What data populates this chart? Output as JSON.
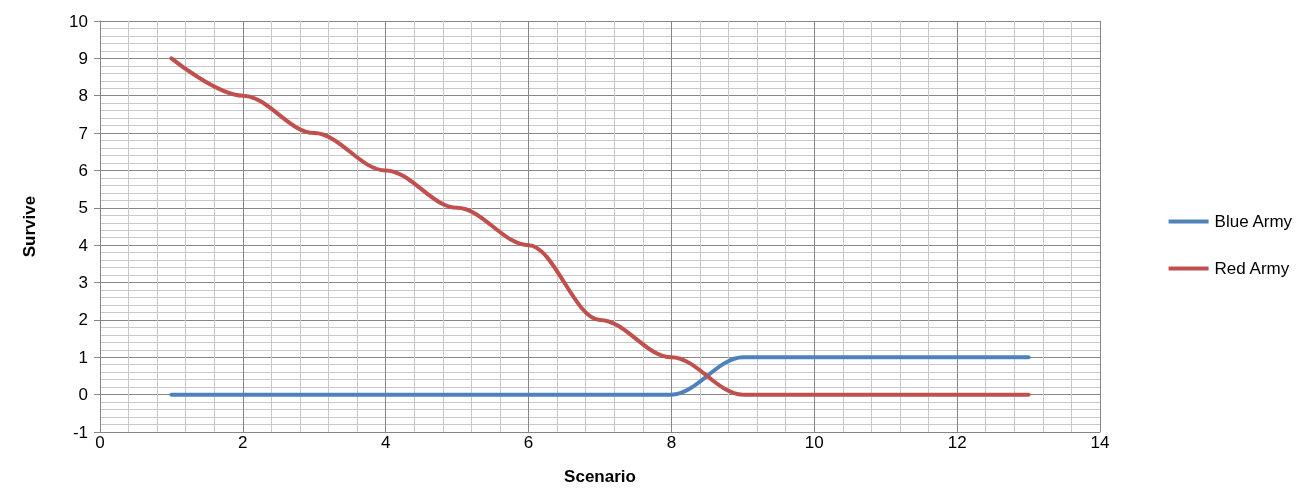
{
  "chart_data": {
    "type": "line",
    "xlabel": "Scenario",
    "ylabel": "Survive",
    "x": [
      1,
      2,
      3,
      4,
      5,
      6,
      7,
      8,
      9,
      10,
      11,
      12,
      13
    ],
    "series": [
      {
        "name": "Blue Army",
        "color": "#4f81bd",
        "values": [
          0,
          0,
          0,
          0,
          0,
          0,
          0,
          0,
          1,
          1,
          1,
          1,
          1
        ]
      },
      {
        "name": "Red Army",
        "color": "#c0504d",
        "values": [
          9,
          8,
          7,
          6,
          5,
          4,
          2,
          1,
          0,
          0,
          0,
          0,
          0
        ]
      }
    ],
    "xlim": [
      0,
      14
    ],
    "xticks": [
      0,
      2,
      4,
      6,
      8,
      10,
      12,
      14
    ],
    "ylim": [
      -1,
      10
    ],
    "yticks": [
      -1,
      0,
      1,
      2,
      3,
      4,
      5,
      6,
      7,
      8,
      9,
      10
    ],
    "grid": true,
    "legend": "right",
    "marker": "none",
    "line_style": "solid"
  }
}
